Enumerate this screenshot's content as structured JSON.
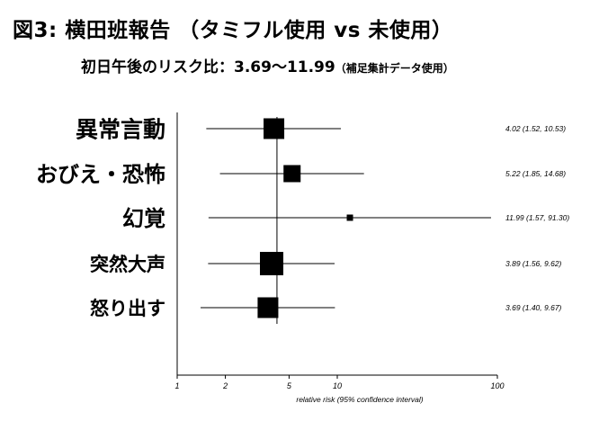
{
  "title": "図3:  横田班報告 （タミフル使用  vs  未使用）",
  "subtitle": "初日午後のリスク比：3.69〜11.99",
  "subtitle_note": "（補足集計データ使用）",
  "chart_data": {
    "type": "forest",
    "xscale": "log",
    "xlim": [
      1,
      100
    ],
    "xticks": [
      1,
      2,
      5,
      10,
      100
    ],
    "xtick_labels": [
      "1",
      "2",
      "5",
      "10",
      "100"
    ],
    "xlabel": "relative risk (95% confidence interval)",
    "reference_line": 4.2,
    "rows": [
      {
        "label": "異常言動",
        "rr": 4.02,
        "lo": 1.52,
        "hi": 10.53,
        "ci_text": "4.02 (1.52, 10.53)",
        "box": "large"
      },
      {
        "label": "おびえ・恐怖",
        "rr": 5.22,
        "lo": 1.85,
        "hi": 14.68,
        "ci_text": "5.22 (1.85, 14.68)",
        "box": "medium"
      },
      {
        "label": "幻覚",
        "rr": 11.99,
        "lo": 1.57,
        "hi": 91.3,
        "ci_text": "11.99 (1.57, 91.30)",
        "box": "small"
      },
      {
        "label": "突然大声",
        "rr": 3.89,
        "lo": 1.56,
        "hi": 9.62,
        "ci_text": "3.89 (1.56, 9.62)",
        "box": "xlarge"
      },
      {
        "label": "怒り出す",
        "rr": 3.69,
        "lo": 1.4,
        "hi": 9.67,
        "ci_text": "3.69 (1.40, 9.67)",
        "box": "large"
      }
    ]
  }
}
